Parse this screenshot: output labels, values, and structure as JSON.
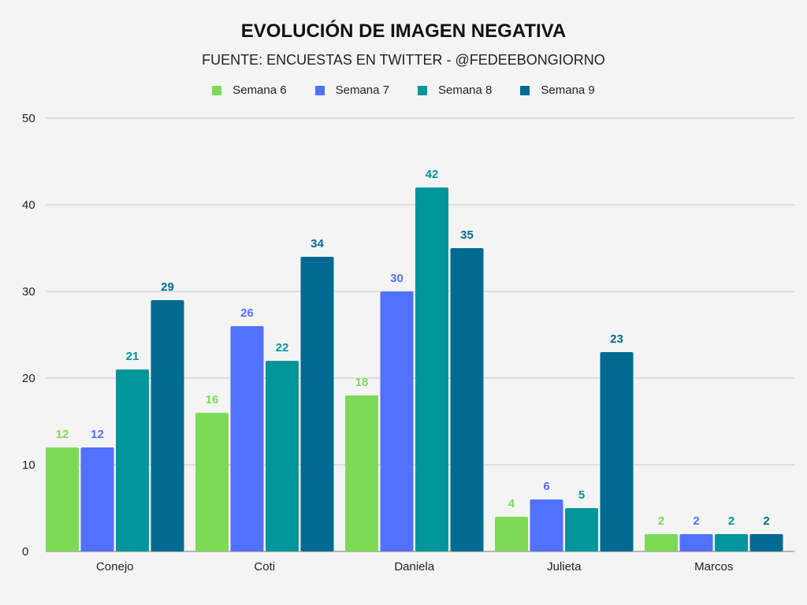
{
  "chart_data": {
    "type": "bar",
    "title": "EVOLUCIÓN DE IMAGEN NEGATIVA",
    "subtitle": "FUENTE: ENCUESTAS EN TWITTER - @FEDEEBONGIORNO",
    "categories": [
      "Conejo",
      "Coti",
      "Daniela",
      "Julieta",
      "Marcos"
    ],
    "series": [
      {
        "name": "Semana 6",
        "color": "#7ED957",
        "values": [
          12,
          16,
          18,
          4,
          2
        ]
      },
      {
        "name": "Semana 7",
        "color": "#5271FF",
        "values": [
          12,
          26,
          30,
          6,
          2
        ]
      },
      {
        "name": "Semana 8",
        "color": "#00959A",
        "values": [
          21,
          22,
          42,
          5,
          2
        ]
      },
      {
        "name": "Semana 9",
        "color": "#006A91",
        "values": [
          29,
          34,
          35,
          23,
          2
        ]
      }
    ],
    "ylim": [
      0,
      50
    ],
    "yticks": [
      0,
      10,
      20,
      30,
      40,
      50
    ],
    "grid": true,
    "legend_position": "top"
  }
}
